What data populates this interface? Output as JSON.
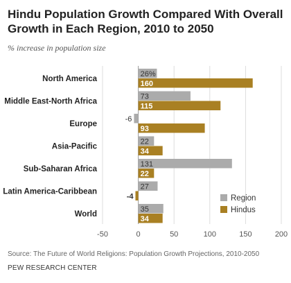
{
  "title": "Hindu Population Growth Compared With Overall Growth in Each Region, 2010 to 2050",
  "subtitle": "% increase in population size",
  "source": "Source: The Future of World Religions: Population Growth Projections, 2010-2050",
  "organization": "PEW RESEARCH CENTER",
  "colors": {
    "region": "#ababab",
    "hindus": "#a98023"
  },
  "chart_data": {
    "type": "bar",
    "orientation": "horizontal",
    "categories": [
      "North America",
      "Middle East-North Africa",
      "Europe",
      "Asia-Pacific",
      "Sub-Saharan Africa",
      "Latin America-Caribbean",
      "World"
    ],
    "series": [
      {
        "name": "Region",
        "values": [
          26,
          73,
          -6,
          22,
          131,
          27,
          35
        ],
        "labels": [
          "26%",
          "73",
          "-6",
          "22",
          "131",
          "27",
          "35"
        ]
      },
      {
        "name": "Hindus",
        "values": [
          160,
          115,
          93,
          34,
          22,
          -4,
          34
        ],
        "labels": [
          "160",
          "115",
          "93",
          "34",
          "22",
          "-4",
          "34"
        ]
      }
    ],
    "xlim": [
      -50,
      200
    ],
    "xticks": [
      -50,
      0,
      50,
      100,
      150,
      200
    ],
    "xtick_labels": [
      "-50",
      "0",
      "50",
      "100",
      "150",
      "200"
    ],
    "legend": {
      "position": "bottom-right",
      "entries": [
        "Region",
        "Hindus"
      ]
    },
    "grid": true
  }
}
